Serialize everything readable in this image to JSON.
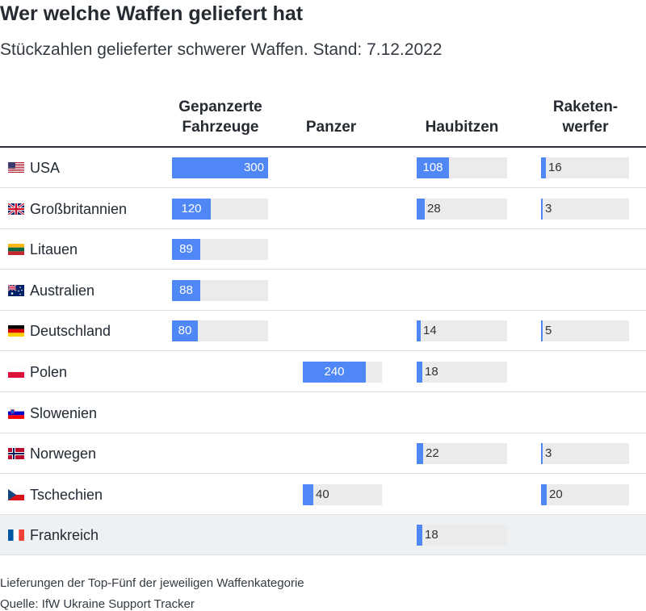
{
  "title": "Wer welche Waffen geliefert hat",
  "subtitle": "Stückzahlen gelieferter schwerer Waffen. Stand: 7.12.2022",
  "columns": [
    {
      "line1": "Gepanzerte",
      "line2": "Fahrzeuge"
    },
    {
      "line1": "",
      "line2": "Panzer"
    },
    {
      "line1": "",
      "line2": "Haubitzen"
    },
    {
      "line1": "Raketen-",
      "line2": "werfer"
    }
  ],
  "footer": {
    "note": "Lieferungen der Top-Fünf der jeweiligen Waffenkategorie",
    "source": "Quelle: IfW Ukraine Support Tracker"
  },
  "chart_data": {
    "type": "table",
    "title": "Wer welche Waffen geliefert hat",
    "subtitle": "Stückzahlen gelieferter schwerer Waffen. Stand: 7.12.2022",
    "categories": [
      "Gepanzerte Fahrzeuge",
      "Panzer",
      "Haubitzen",
      "Raketenwerfer"
    ],
    "max": [
      300,
      300,
      300,
      300
    ],
    "rows": [
      {
        "country": "USA",
        "flag": "us-flag-icon",
        "values": [
          300,
          null,
          108,
          16
        ],
        "highlight": false
      },
      {
        "country": "Großbritannien",
        "flag": "uk-flag-icon",
        "values": [
          120,
          null,
          28,
          3
        ],
        "highlight": false
      },
      {
        "country": "Litauen",
        "flag": "lithuania-flag-icon",
        "values": [
          89,
          null,
          null,
          null
        ],
        "highlight": false
      },
      {
        "country": "Australien",
        "flag": "australia-flag-icon",
        "values": [
          88,
          null,
          null,
          null
        ],
        "highlight": false
      },
      {
        "country": "Deutschland",
        "flag": "germany-flag-icon",
        "values": [
          80,
          null,
          14,
          5
        ],
        "highlight": false
      },
      {
        "country": "Polen",
        "flag": "poland-flag-icon",
        "values": [
          null,
          240,
          18,
          null
        ],
        "highlight": false
      },
      {
        "country": "Slowenien",
        "flag": "slovenia-flag-icon",
        "values": [
          null,
          null,
          null,
          null
        ],
        "highlight": false
      },
      {
        "country": "Norwegen",
        "flag": "norway-flag-icon",
        "values": [
          null,
          null,
          22,
          3
        ],
        "highlight": false
      },
      {
        "country": "Tschechien",
        "flag": "czechia-flag-icon",
        "values": [
          null,
          40,
          null,
          20
        ],
        "highlight": false
      },
      {
        "country": "Frankreich",
        "flag": "france-flag-icon",
        "values": [
          null,
          null,
          18,
          null
        ],
        "highlight": true
      }
    ],
    "colors": {
      "bar": "#5087f7",
      "track": "#ebebeb",
      "highlight_row": "#eef1f4"
    }
  }
}
